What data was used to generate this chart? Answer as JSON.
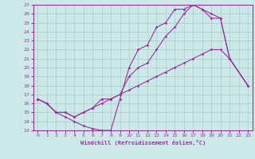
{
  "xlabel": "Windchill (Refroidissement éolien,°C)",
  "bg_color": "#cce8e8",
  "grid_color": "#aacccc",
  "line_color": "#993399",
  "xlim": [
    -0.5,
    23.5
  ],
  "ylim": [
    13,
    27
  ],
  "xticks": [
    0,
    1,
    2,
    3,
    4,
    5,
    6,
    7,
    8,
    9,
    10,
    11,
    12,
    13,
    14,
    15,
    16,
    17,
    18,
    19,
    20,
    21,
    22,
    23
  ],
  "yticks": [
    13,
    14,
    15,
    16,
    17,
    18,
    19,
    20,
    21,
    22,
    23,
    24,
    25,
    26,
    27
  ],
  "line1_x": [
    0,
    1,
    2,
    3,
    4,
    5,
    6,
    7,
    8,
    9,
    10,
    11,
    12,
    13,
    14,
    15,
    16,
    17,
    18,
    19,
    20,
    21,
    23
  ],
  "line1_y": [
    16.5,
    16.0,
    15.0,
    14.5,
    14.0,
    13.5,
    13.2,
    13.0,
    13.0,
    16.5,
    20.0,
    22.0,
    22.5,
    24.5,
    25.0,
    26.5,
    26.5,
    27.0,
    26.5,
    26.0,
    25.5,
    21.0,
    18.0
  ],
  "line2_x": [
    0,
    1,
    2,
    3,
    4,
    5,
    6,
    7,
    8,
    9,
    10,
    11,
    12,
    13,
    14,
    15,
    16,
    17,
    18,
    19,
    20,
    21,
    23
  ],
  "line2_y": [
    16.5,
    16.0,
    15.0,
    15.0,
    14.5,
    15.0,
    15.5,
    16.0,
    16.5,
    17.0,
    17.5,
    18.0,
    18.5,
    19.0,
    19.5,
    20.0,
    20.5,
    21.0,
    21.5,
    22.0,
    22.0,
    21.0,
    18.0
  ],
  "line3_x": [
    0,
    1,
    2,
    3,
    4,
    5,
    6,
    7,
    8,
    9,
    10,
    11,
    12,
    13,
    14,
    15,
    16,
    17,
    18,
    19,
    20,
    21,
    23
  ],
  "line3_y": [
    16.5,
    16.0,
    15.0,
    15.0,
    14.5,
    15.0,
    15.5,
    16.5,
    16.5,
    17.0,
    19.0,
    20.0,
    20.5,
    22.0,
    23.5,
    24.5,
    26.0,
    27.0,
    26.5,
    25.5,
    25.5,
    21.0,
    18.0
  ]
}
